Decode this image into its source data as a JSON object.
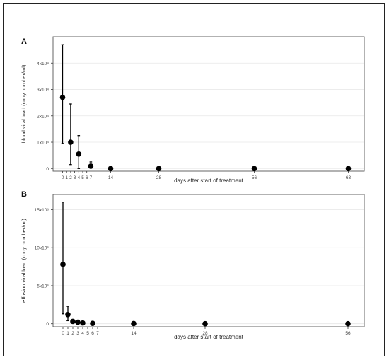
{
  "chart_data": [
    {
      "panel_label": "A",
      "type": "scatter",
      "xlabel": "days after start of treatment",
      "ylabel": "blood viral load (copy number/ml)",
      "x_ticks": [
        "0",
        "1",
        "2",
        "3",
        "4",
        "5",
        "6",
        "7",
        "14",
        "28",
        "56",
        "63"
      ],
      "y_ticks": [
        "0",
        "1x10⁴",
        "2x10⁴",
        "3x10⁴",
        "4x10⁴"
      ],
      "xlim": [
        -0.5,
        63.5
      ],
      "ylim": [
        -1000,
        50000
      ],
      "grid": true,
      "points": [
        {
          "x": 0,
          "y": 27000,
          "low": 9500,
          "high": 47000
        },
        {
          "x": 2,
          "y": 10000,
          "low": 1500,
          "high": 24500
        },
        {
          "x": 4,
          "y": 5500,
          "low": 0,
          "high": 12500
        },
        {
          "x": 7,
          "y": 900,
          "low": 100,
          "high": 2500
        },
        {
          "x": 14,
          "y": 0
        },
        {
          "x": 28,
          "y": 0
        },
        {
          "x": 56,
          "y": 0
        },
        {
          "x": 63,
          "y": 0
        }
      ]
    },
    {
      "panel_label": "B",
      "type": "scatter",
      "xlabel": "days after start of treatment",
      "ylabel": "effusion viral load (copy number/ml)",
      "x_ticks": [
        "0",
        "1",
        "2",
        "3",
        "4",
        "5",
        "6",
        "7",
        "14",
        "28",
        "56"
      ],
      "y_ticks": [
        "0",
        "5x10⁶",
        "10x10⁶",
        "15x10⁶"
      ],
      "xlim": [
        -0.5,
        56.5
      ],
      "ylim": [
        -400000,
        17000000
      ],
      "grid": true,
      "points": [
        {
          "x": 0,
          "y": 7800000,
          "low": 1300000,
          "high": 16000000
        },
        {
          "x": 1,
          "y": 1200000,
          "low": 400000,
          "high": 2300000
        },
        {
          "x": 2,
          "y": 300000
        },
        {
          "x": 3,
          "y": 200000
        },
        {
          "x": 4,
          "y": 100000
        },
        {
          "x": 6,
          "y": 50000
        },
        {
          "x": 14,
          "y": 20000
        },
        {
          "x": 28,
          "y": 0
        },
        {
          "x": 56,
          "y": 0
        }
      ]
    }
  ]
}
